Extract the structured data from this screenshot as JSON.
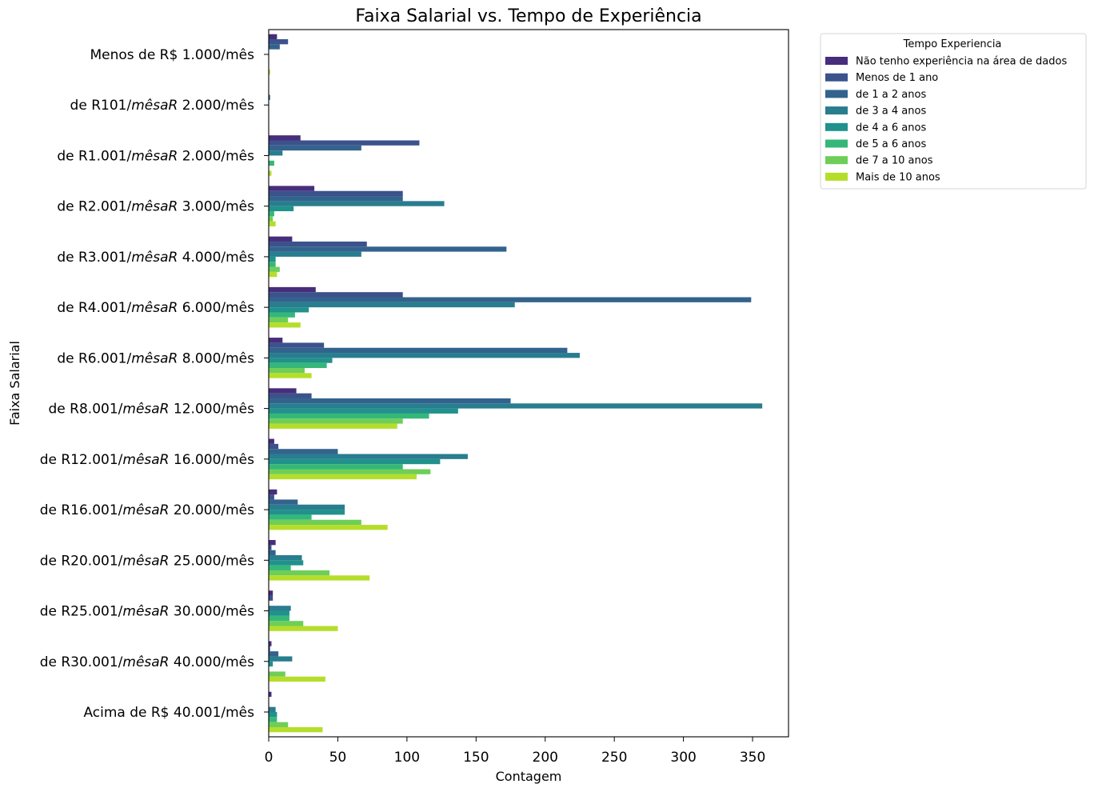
{
  "chart_data": {
    "type": "bar",
    "orientation": "horizontal",
    "title": "Faixa Salarial vs. Tempo de Experiência",
    "xlabel": "Contagem",
    "ylabel": "Faixa Salarial",
    "xlim": [
      0,
      376
    ],
    "xticks": [
      0,
      50,
      100,
      150,
      200,
      250,
      300,
      350
    ],
    "grid": false,
    "legend_title": "Tempo Experiencia",
    "legend_position": "outside top-right",
    "categories": [
      "Menos de R$ 1.000/mês",
      "de R101/mêsaR 2.000/mês",
      "de R1.001/mêsaR 2.000/mês",
      "de R2.001/mêsaR 3.000/mês",
      "de R3.001/mêsaR 4.000/mês",
      "de R4.001/mêsaR 6.000/mês",
      "de R6.001/mêsaR 8.000/mês",
      "de R8.001/mêsaR 12.000/mês",
      "de R12.001/mêsaR 16.000/mês",
      "de R16.001/mêsaR 20.000/mês",
      "de R20.001/mêsaR 25.000/mês",
      "de R25.001/mêsaR 30.000/mês",
      "de R30.001/mêsaR 40.000/mês",
      "Acima de R$ 40.001/mês"
    ],
    "category_labels": [
      {
        "pre": "Menos de R$ 1.000/mês",
        "it": "",
        "post": ""
      },
      {
        "pre": "de R101/",
        "it": "mêsaR",
        "post": " 2.000/mês"
      },
      {
        "pre": "de R1.001/",
        "it": "mêsaR",
        "post": " 2.000/mês"
      },
      {
        "pre": "de R2.001/",
        "it": "mêsaR",
        "post": " 3.000/mês"
      },
      {
        "pre": "de R3.001/",
        "it": "mêsaR",
        "post": " 4.000/mês"
      },
      {
        "pre": "de R4.001/",
        "it": "mêsaR",
        "post": " 6.000/mês"
      },
      {
        "pre": "de R6.001/",
        "it": "mêsaR",
        "post": " 8.000/mês"
      },
      {
        "pre": "de R8.001/",
        "it": "mêsaR",
        "post": " 12.000/mês"
      },
      {
        "pre": "de R12.001/",
        "it": "mêsaR",
        "post": " 16.000/mês"
      },
      {
        "pre": "de R16.001/",
        "it": "mêsaR",
        "post": " 20.000/mês"
      },
      {
        "pre": "de R20.001/",
        "it": "mêsaR",
        "post": " 25.000/mês"
      },
      {
        "pre": "de R25.001/",
        "it": "mêsaR",
        "post": " 30.000/mês"
      },
      {
        "pre": "de R30.001/",
        "it": "mêsaR",
        "post": " 40.000/mês"
      },
      {
        "pre": "Acima de R$ 40.001/mês",
        "it": "",
        "post": ""
      }
    ],
    "series": [
      {
        "name": "Não tenho experiência na área de dados",
        "color": "#472d7b",
        "values": [
          6,
          0,
          23,
          33,
          17,
          34,
          10,
          20,
          4,
          6,
          5,
          3,
          2,
          2
        ]
      },
      {
        "name": "Menos de 1 ano",
        "color": "#3b528b",
        "values": [
          14,
          0,
          109,
          97,
          71,
          97,
          40,
          31,
          7,
          4,
          2,
          3,
          1,
          0
        ]
      },
      {
        "name": "de 1 a 2 anos",
        "color": "#33638d",
        "values": [
          8,
          1,
          67,
          97,
          172,
          349,
          216,
          175,
          50,
          21,
          5,
          0,
          7,
          0
        ]
      },
      {
        "name": "de 3 a 4 anos",
        "color": "#287d8e",
        "values": [
          0,
          0,
          10,
          127,
          67,
          178,
          225,
          357,
          144,
          55,
          24,
          16,
          17,
          5
        ]
      },
      {
        "name": "de 4 a 6 anos",
        "color": "#21918c",
        "values": [
          0,
          0,
          0,
          18,
          5,
          29,
          46,
          137,
          124,
          55,
          25,
          15,
          3,
          6
        ]
      },
      {
        "name": "de 5 a 6 anos",
        "color": "#35b779",
        "values": [
          0,
          0,
          4,
          4,
          5,
          19,
          42,
          116,
          97,
          31,
          16,
          15,
          0,
          6
        ]
      },
      {
        "name": "de 7 a 10 anos",
        "color": "#6ece58",
        "values": [
          0,
          0,
          0,
          3,
          8,
          14,
          26,
          97,
          117,
          67,
          44,
          25,
          12,
          14
        ]
      },
      {
        "name": "Mais de 10 anos",
        "color": "#b5de2b",
        "values": [
          1,
          0,
          2,
          5,
          6,
          23,
          31,
          93,
          107,
          86,
          73,
          50,
          41,
          39
        ]
      }
    ]
  }
}
